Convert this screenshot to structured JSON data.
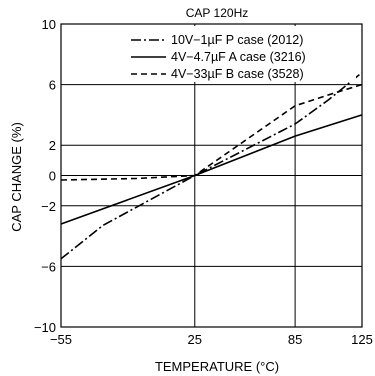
{
  "chart_data": {
    "type": "line",
    "title": "CAP 120Hz",
    "xlabel": "TEMPERATURE (°C)",
    "ylabel": "CAP  CHANGE (%)",
    "xlim": [
      -55,
      125
    ],
    "ylim": [
      -10,
      10
    ],
    "x_ticks": [
      {
        "value": -55,
        "label": "−55"
      },
      {
        "value": 25,
        "label": "25"
      },
      {
        "value": 85,
        "label": "85"
      },
      {
        "value": 125,
        "label": "125"
      }
    ],
    "y_ticks": [
      {
        "value": 10,
        "label": "10"
      },
      {
        "value": 6,
        "label": "6"
      },
      {
        "value": 2,
        "label": "2"
      },
      {
        "value": 0,
        "label": "0"
      },
      {
        "value": -2,
        "label": "−2"
      },
      {
        "value": -6,
        "label": "−6"
      },
      {
        "value": -10,
        "label": "−10"
      }
    ],
    "grid": true,
    "legend_position": "top-left",
    "series": [
      {
        "name": "10V−1µF  P case (2012)",
        "style": "dashdot",
        "points": [
          [
            -55,
            -5.5
          ],
          [
            -30,
            -3.3
          ],
          [
            25,
            0
          ],
          [
            85,
            3.4
          ],
          [
            105,
            5.0
          ],
          [
            125,
            6.8
          ]
        ]
      },
      {
        "name": "4V−4.7µF  A case (3216)",
        "style": "solid",
        "points": [
          [
            -55,
            -3.2
          ],
          [
            25,
            0
          ],
          [
            85,
            2.6
          ],
          [
            125,
            4.0
          ]
        ]
      },
      {
        "name": "4V−33µF  B case (3528)",
        "style": "dashed",
        "points": [
          [
            -55,
            -0.3
          ],
          [
            -10,
            -0.2
          ],
          [
            25,
            0
          ],
          [
            85,
            4.6
          ],
          [
            110,
            5.5
          ],
          [
            125,
            6.0
          ]
        ]
      }
    ],
    "colors": {
      "line": "#000000",
      "grid": "#000000",
      "background": "#ffffff"
    }
  }
}
